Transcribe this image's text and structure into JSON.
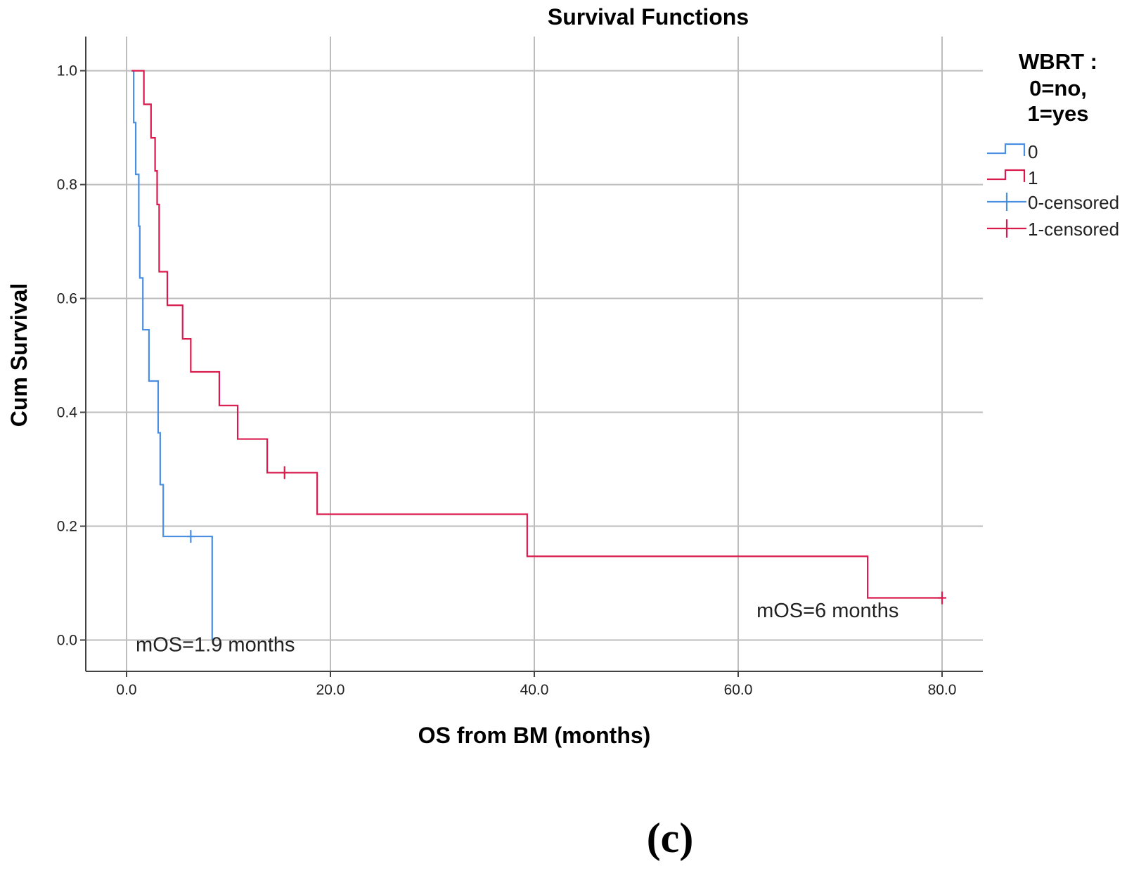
{
  "chart_data": {
    "type": "line",
    "subtype": "kaplan-meier step",
    "title": "Survival Functions",
    "xlabel": "OS from BM (months)",
    "ylabel": "Cum Survival",
    "xlim": [
      -4,
      84
    ],
    "ylim": [
      -0.055,
      1.06
    ],
    "xticks": [
      0,
      20,
      40,
      60,
      80
    ],
    "xtick_labels": [
      "0.0",
      "20.0",
      "40.0",
      "60.0",
      "80.0"
    ],
    "yticks": [
      0,
      0.2,
      0.4,
      0.6,
      0.8,
      1.0
    ],
    "ytick_labels": [
      "0.0",
      "0.2",
      "0.4",
      "0.6",
      "0.8",
      "1.0"
    ],
    "grid": true,
    "legend": {
      "title_lines": [
        "WBRT :",
        "0=no,",
        "1=yes"
      ],
      "position": "top-right, outside plot",
      "entries": [
        {
          "label": "0",
          "series": "0",
          "kind": "step"
        },
        {
          "label": "1",
          "series": "1",
          "kind": "step"
        },
        {
          "label": "0-censored",
          "series": "0",
          "kind": "censored"
        },
        {
          "label": "1-censored",
          "series": "1",
          "kind": "censored"
        }
      ]
    },
    "series": [
      {
        "name": "0",
        "color": "#4a8fe0",
        "steps": [
          [
            0.5,
            1.0
          ],
          [
            0.7,
            0.909
          ],
          [
            0.9,
            0.818
          ],
          [
            1.2,
            0.727
          ],
          [
            1.3,
            0.636
          ],
          [
            1.6,
            0.545
          ],
          [
            2.2,
            0.455
          ],
          [
            3.1,
            0.364
          ],
          [
            3.3,
            0.273
          ],
          [
            3.6,
            0.182
          ],
          [
            8.4,
            0.0
          ]
        ],
        "censored": [
          [
            6.3,
            0.182
          ]
        ]
      },
      {
        "name": "1",
        "color": "#d91a4d",
        "steps": [
          [
            0.5,
            1.0
          ],
          [
            1.7,
            0.941
          ],
          [
            2.4,
            0.882
          ],
          [
            2.8,
            0.824
          ],
          [
            3.0,
            0.765
          ],
          [
            3.2,
            0.647
          ],
          [
            4.0,
            0.588
          ],
          [
            5.5,
            0.529
          ],
          [
            6.3,
            0.471
          ],
          [
            9.1,
            0.412
          ],
          [
            10.9,
            0.353
          ],
          [
            13.8,
            0.294
          ],
          [
            18.7,
            0.221
          ],
          [
            39.3,
            0.147
          ],
          [
            72.7,
            0.074
          ],
          [
            80.0,
            0.074
          ]
        ],
        "censored": [
          [
            15.5,
            0.294
          ],
          [
            80.0,
            0.074
          ]
        ]
      }
    ],
    "annotations": [
      {
        "text": "mOS=1.9 months",
        "x": 0.9,
        "y": -0.02
      },
      {
        "text": "mOS=6 months",
        "x": 61.8,
        "y": 0.04
      }
    ]
  },
  "panel_label": "(c)"
}
